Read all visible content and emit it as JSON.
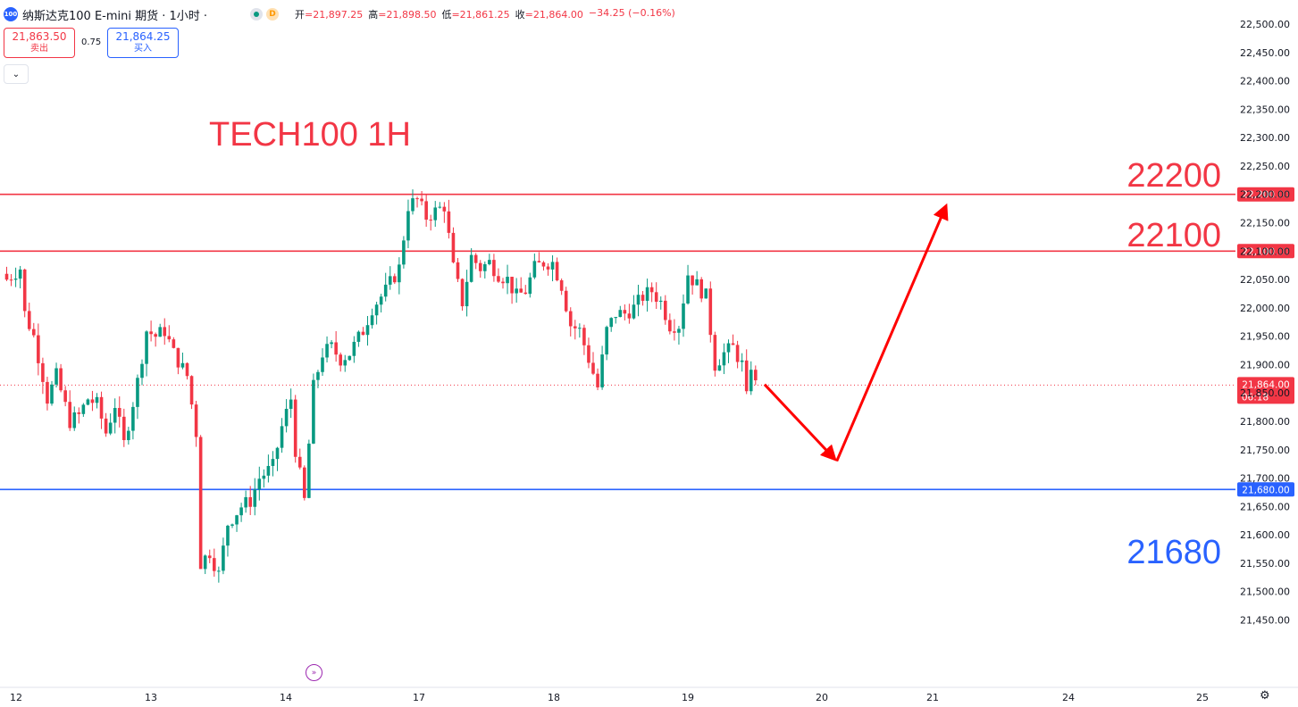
{
  "header": {
    "badge": "100",
    "title": "纳斯达克100 E-mini 期货 · 1小时 ·",
    "status_icon": "market-open-dot",
    "d_badge": "D",
    "ohlc": {
      "open_label": "开",
      "open": "=21,897.25",
      "high_label": "高",
      "high": "=21,898.50",
      "low_label": "低",
      "low": "=21,861.25",
      "close_label": "收",
      "close": "=21,864.00",
      "change": "−34.25 (−0.16%)"
    }
  },
  "trade": {
    "sell_price": "21,863.50",
    "sell_label": "卖出",
    "spread": "0.75",
    "buy_price": "21,864.25",
    "buy_label": "买入"
  },
  "collapse_icon": "chevron-down-icon",
  "annotations": {
    "title": "TECH100 1H",
    "level_22200": "22200",
    "level_22100": "22100",
    "level_21680": "21680"
  },
  "colors": {
    "up": "#089981",
    "down": "#f23645",
    "resistance": "#f23645",
    "support": "#2962ff",
    "arrow": "#ff0000"
  },
  "chart_data": {
    "type": "candlestick",
    "title": "TECH100 1H",
    "ylim": [
      21420,
      22525
    ],
    "y_ticks": [
      "22,500.00",
      "22,450.00",
      "22,400.00",
      "22,350.00",
      "22,300.00",
      "22,250.00",
      "22,200.00",
      "22,150.00",
      "22,100.00",
      "22,050.00",
      "22,000.00",
      "21,950.00",
      "21,900.00",
      "21,850.00",
      "21,800.00",
      "21,750.00",
      "21,700.00",
      "21,650.00",
      "21,600.00",
      "21,550.00",
      "21,500.00",
      "21,450.00"
    ],
    "x_ticks": [
      "12",
      "13",
      "14",
      "17",
      "18",
      "19",
      "20",
      "21",
      "24",
      "25"
    ],
    "bar_count": 166,
    "current_price": {
      "label": "21,864.00",
      "countdown": "06:18",
      "value": 21864
    },
    "levels": [
      {
        "value": 22200,
        "label": "22,200.00",
        "color": "#f23645"
      },
      {
        "value": 22100,
        "label": "22,100.00",
        "color": "#f23645"
      },
      {
        "value": 21680,
        "label": "21,680.00",
        "color": "#2962ff"
      }
    ],
    "projection": [
      {
        "bar": 168,
        "price": 21865
      },
      {
        "bar": 184,
        "price": 21730
      },
      {
        "bar": 208,
        "price": 22185
      }
    ],
    "anchors": [
      [
        0,
        22050
      ],
      [
        3,
        22070
      ],
      [
        4,
        21990
      ],
      [
        6,
        21950
      ],
      [
        8,
        21880
      ],
      [
        9,
        21840
      ],
      [
        11,
        21880
      ],
      [
        14,
        21800
      ],
      [
        16,
        21810
      ],
      [
        18,
        21840
      ],
      [
        20,
        21830
      ],
      [
        22,
        21780
      ],
      [
        24,
        21830
      ],
      [
        26,
        21760
      ],
      [
        29,
        21870
      ],
      [
        31,
        21960
      ],
      [
        33,
        21950
      ],
      [
        35,
        21960
      ],
      [
        37,
        21920
      ],
      [
        40,
        21880
      ],
      [
        42,
        21780
      ],
      [
        43,
        21550
      ],
      [
        45,
        21570
      ],
      [
        47,
        21530
      ],
      [
        49,
        21620
      ],
      [
        52,
        21650
      ],
      [
        54,
        21660
      ],
      [
        56,
        21700
      ],
      [
        59,
        21720
      ],
      [
        61,
        21790
      ],
      [
        63,
        21840
      ],
      [
        64,
        21750
      ],
      [
        66,
        21660
      ],
      [
        68,
        21860
      ],
      [
        70,
        21920
      ],
      [
        72,
        21930
      ],
      [
        74,
        21910
      ],
      [
        76,
        21920
      ],
      [
        79,
        21960
      ],
      [
        81,
        22000
      ],
      [
        84,
        22030
      ],
      [
        87,
        22070
      ],
      [
        89,
        22180
      ],
      [
        91,
        22190
      ],
      [
        93,
        22160
      ],
      [
        95,
        22170
      ],
      [
        97,
        22180
      ],
      [
        99,
        22070
      ],
      [
        101,
        22010
      ],
      [
        103,
        22090
      ],
      [
        105,
        22070
      ],
      [
        107,
        22080
      ],
      [
        109,
        22060
      ],
      [
        111,
        22050
      ],
      [
        113,
        22020
      ],
      [
        115,
        22030
      ],
      [
        117,
        22070
      ],
      [
        119,
        22080
      ],
      [
        121,
        22080
      ],
      [
        123,
        22040
      ],
      [
        125,
        21970
      ],
      [
        127,
        21960
      ],
      [
        129,
        21910
      ],
      [
        131,
        21860
      ],
      [
        133,
        21960
      ],
      [
        135,
        21990
      ],
      [
        137,
        21990
      ],
      [
        139,
        22000
      ],
      [
        141,
        22020
      ],
      [
        143,
        22030
      ],
      [
        145,
        22010
      ],
      [
        147,
        21970
      ],
      [
        149,
        21970
      ],
      [
        151,
        22060
      ],
      [
        153,
        22040
      ],
      [
        155,
        22020
      ],
      [
        157,
        21900
      ],
      [
        159,
        21920
      ],
      [
        161,
        21930
      ],
      [
        163,
        21900
      ],
      [
        164,
        21840
      ],
      [
        165,
        21900
      ],
      [
        166,
        21864
      ]
    ]
  }
}
